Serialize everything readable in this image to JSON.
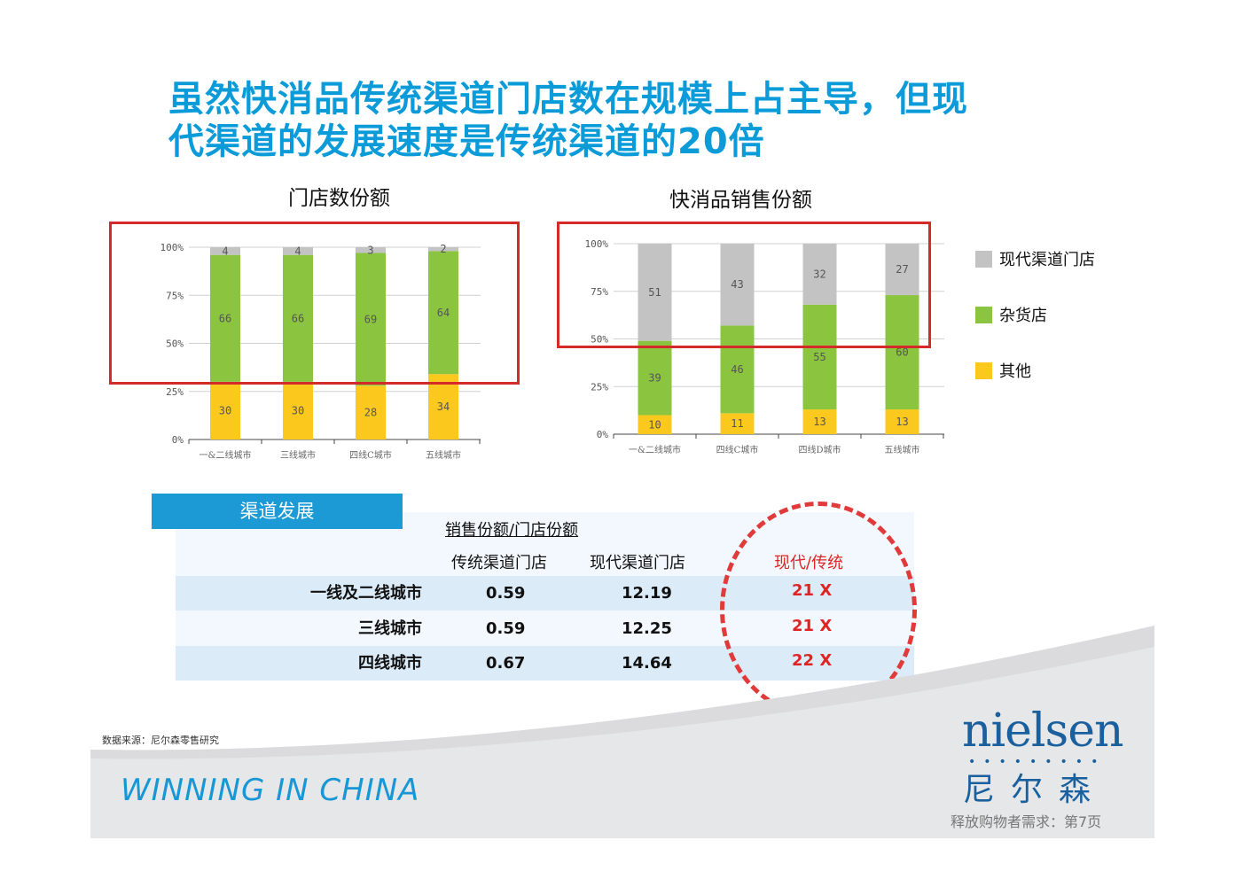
{
  "title": {
    "line1": "虽然快消品传统渠道门店数在规模上占主导，但现",
    "line2": "代渠道的发展速度是传统渠道的20倍"
  },
  "chart_data": [
    {
      "type": "bar",
      "stacked": true,
      "title": "门店数份额",
      "categories": [
        "一&二线城市",
        "三线城市",
        "四线C城市",
        "五线城市"
      ],
      "series": [
        {
          "name": "其他",
          "color": "#fbc91d",
          "values": [
            30,
            30,
            28,
            34
          ]
        },
        {
          "name": "杂货店",
          "color": "#8bc540",
          "values": [
            66,
            66,
            69,
            64
          ]
        },
        {
          "name": "现代渠道门店",
          "color": "#c3c3c3",
          "values": [
            4,
            4,
            3,
            2
          ]
        }
      ],
      "yticks": [
        "0%",
        "25%",
        "50%",
        "75%",
        "100%"
      ],
      "ylim": [
        0,
        100
      ],
      "grid": true
    },
    {
      "type": "bar",
      "stacked": true,
      "title": "快消品销售份额",
      "categories": [
        "一&二线城市",
        "四线C城市",
        "四线D城市",
        "五线城市"
      ],
      "series": [
        {
          "name": "其他",
          "color": "#fbc91d",
          "values": [
            10,
            11,
            13,
            13
          ]
        },
        {
          "name": "杂货店",
          "color": "#8bc540",
          "values": [
            39,
            46,
            55,
            60
          ]
        },
        {
          "name": "现代渠道门店",
          "color": "#c3c3c3",
          "values": [
            51,
            43,
            32,
            27
          ]
        }
      ],
      "yticks": [
        "0%",
        "25%",
        "50%",
        "75%",
        "100%"
      ],
      "ylim": [
        0,
        100
      ],
      "grid": true
    }
  ],
  "legend": [
    {
      "label": "现代渠道门店",
      "color": "#c3c3c3"
    },
    {
      "label": "杂货店",
      "color": "#8bc540"
    },
    {
      "label": "其他",
      "color": "#fbc91d"
    }
  ],
  "table": {
    "tab_label": "渠道发展",
    "group_header": "销售份额/门店份额",
    "columns": [
      "传统渠道门店",
      "现代渠道门店",
      "现代/传统"
    ],
    "rows": [
      {
        "label": "一线及二线城市",
        "traditional": "0.59",
        "modern": "12.19",
        "ratio": "21 X"
      },
      {
        "label": "三线城市",
        "traditional": "0.59",
        "modern": "12.25",
        "ratio": "21 X"
      },
      {
        "label": "四线城市",
        "traditional": "0.67",
        "modern": "14.64",
        "ratio": "22 X"
      }
    ]
  },
  "footer": {
    "source": "数据来源：尼尔森零售研究",
    "slogan": "WINNING IN CHINA",
    "brand": "nielsen",
    "brand_dots": "•••••••••",
    "brand_cn": "尼尔森",
    "page_note": "释放购物者需求：第7页"
  }
}
